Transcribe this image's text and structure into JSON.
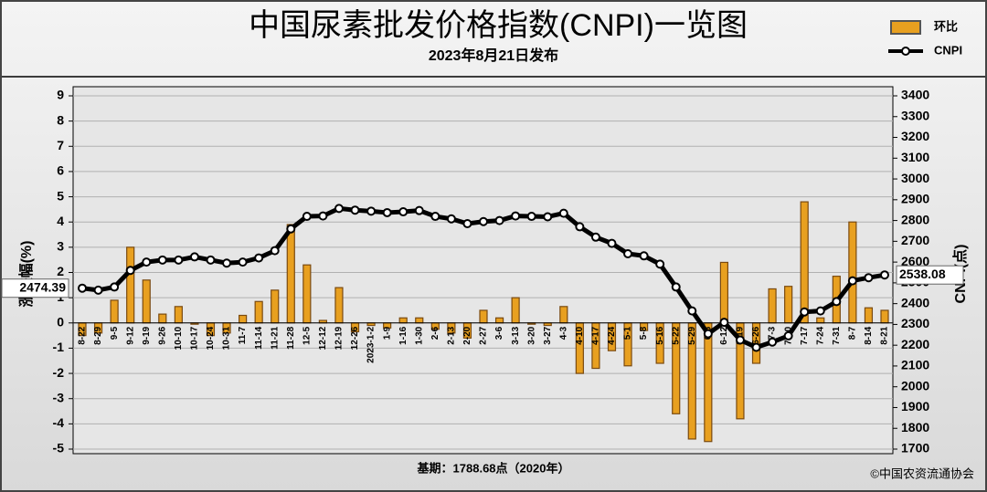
{
  "chart_data": {
    "type": "bar_line",
    "title": "中国尿素批发价格指数(CNPI)一览图",
    "subtitle": "2023年8月21日发布",
    "y_label": "涨跌幅(%)",
    "y2_label": "CNPI(点)",
    "annotations": [
      "基期：1788.68点（2020年）",
      "©中国农资流通协会"
    ],
    "categories": [
      "8-22",
      "8-29",
      "9-5",
      "9-12",
      "9-19",
      "9-26",
      "10-10",
      "10-17",
      "10-24",
      "10-31",
      "11-7",
      "11-14",
      "11-21",
      "11-28",
      "12-5",
      "12-12",
      "12-19",
      "12-26",
      "2023-1-2",
      "1-9",
      "1-16",
      "1-30",
      "2-6",
      "2-13",
      "2-20",
      "2-27",
      "3-6",
      "3-13",
      "3-20",
      "3-27",
      "4-3",
      "4-10",
      "4-17",
      "4-24",
      "5-1",
      "5-8",
      "5-16",
      "5-22",
      "5-29",
      "6-5",
      "6-12",
      "6-19",
      "6-26",
      "7-3",
      "7-10",
      "7-17",
      "7-24",
      "7-31",
      "8-7",
      "8-14",
      "8-21"
    ],
    "series": [
      {
        "name": "环比",
        "type": "bar",
        "axis": "y",
        "color": "#e8a020",
        "values": [
          -0.5,
          -0.4,
          0.9,
          3.0,
          1.7,
          0.35,
          0.65,
          -0.05,
          -0.5,
          -0.4,
          0.3,
          0.85,
          1.3,
          3.9,
          2.3,
          0.1,
          1.4,
          -0.35,
          -0.1,
          -0.2,
          0.2,
          0.2,
          -0.25,
          -0.4,
          -0.6,
          0.5,
          0.2,
          1.0,
          -0.05,
          -0.1,
          0.65,
          -2.0,
          -1.8,
          -1.1,
          -1.7,
          -0.3,
          -1.6,
          -3.6,
          -4.6,
          -4.7,
          2.4,
          -3.8,
          -1.6,
          1.35,
          1.45,
          4.8,
          0.2,
          1.85,
          4.0,
          0.6,
          0.5
        ]
      },
      {
        "name": "CNPI",
        "type": "line",
        "axis": "y2",
        "color": "#000000",
        "values": [
          2474.39,
          2465,
          2480,
          2560,
          2600,
          2610,
          2610,
          2625,
          2610,
          2595,
          2600,
          2620,
          2655,
          2760,
          2820,
          2822,
          2858,
          2850,
          2845,
          2838,
          2842,
          2848,
          2820,
          2808,
          2785,
          2795,
          2800,
          2822,
          2820,
          2818,
          2835,
          2770,
          2720,
          2690,
          2640,
          2630,
          2590,
          2480,
          2365,
          2255,
          2310,
          2225,
          2190,
          2215,
          2245,
          2360,
          2365,
          2410,
          2510,
          2525,
          2538.08
        ]
      }
    ],
    "ylim": [
      -5,
      9
    ],
    "yticks": [
      -5,
      -4,
      -3,
      -2,
      -1,
      0,
      1,
      2,
      3,
      4,
      5,
      6,
      7,
      8,
      9
    ],
    "y2lim": [
      1700,
      3400
    ],
    "y2ticks": [
      1700,
      1800,
      1900,
      2000,
      2100,
      2200,
      2300,
      2400,
      2500,
      2600,
      2700,
      2800,
      2900,
      3000,
      3100,
      3200,
      3300,
      3400
    ],
    "grid": true,
    "legend": "top-right"
  }
}
